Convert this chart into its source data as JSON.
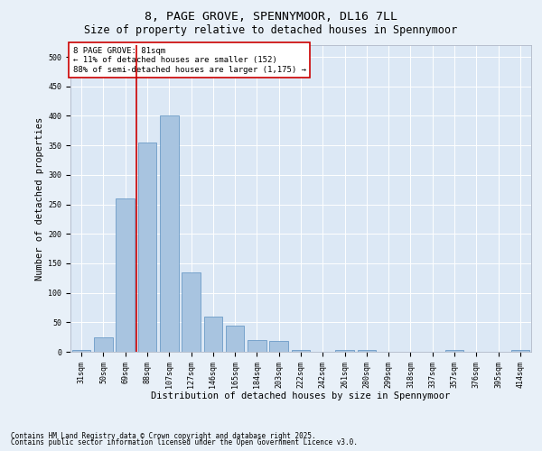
{
  "title1": "8, PAGE GROVE, SPENNYMOOR, DL16 7LL",
  "title2": "Size of property relative to detached houses in Spennymoor",
  "xlabel": "Distribution of detached houses by size in Spennymoor",
  "ylabel": "Number of detached properties",
  "categories": [
    "31sqm",
    "50sqm",
    "69sqm",
    "88sqm",
    "107sqm",
    "127sqm",
    "146sqm",
    "165sqm",
    "184sqm",
    "203sqm",
    "222sqm",
    "242sqm",
    "261sqm",
    "280sqm",
    "299sqm",
    "318sqm",
    "337sqm",
    "357sqm",
    "376sqm",
    "395sqm",
    "414sqm"
  ],
  "values": [
    3,
    25,
    260,
    355,
    400,
    135,
    60,
    45,
    20,
    18,
    3,
    0,
    3,
    3,
    0,
    0,
    0,
    3,
    0,
    0,
    3
  ],
  "bar_color": "#a8c4e0",
  "bar_edge_color": "#5a8fc0",
  "vline_color": "#cc0000",
  "annotation_text": "8 PAGE GROVE: 81sqm\n← 11% of detached houses are smaller (152)\n88% of semi-detached houses are larger (1,175) →",
  "annotation_box_color": "#ffffff",
  "annotation_box_edge": "#cc0000",
  "ylim": [
    0,
    520
  ],
  "yticks": [
    0,
    50,
    100,
    150,
    200,
    250,
    300,
    350,
    400,
    450,
    500
  ],
  "background_color": "#e8f0f8",
  "plot_bg_color": "#dce8f5",
  "footer1": "Contains HM Land Registry data © Crown copyright and database right 2025.",
  "footer2": "Contains public sector information licensed under the Open Government Licence v3.0.",
  "title_fontsize": 9.5,
  "subtitle_fontsize": 8.5,
  "tick_fontsize": 6.0,
  "label_fontsize": 7.5,
  "annotation_fontsize": 6.5,
  "footer_fontsize": 5.5
}
